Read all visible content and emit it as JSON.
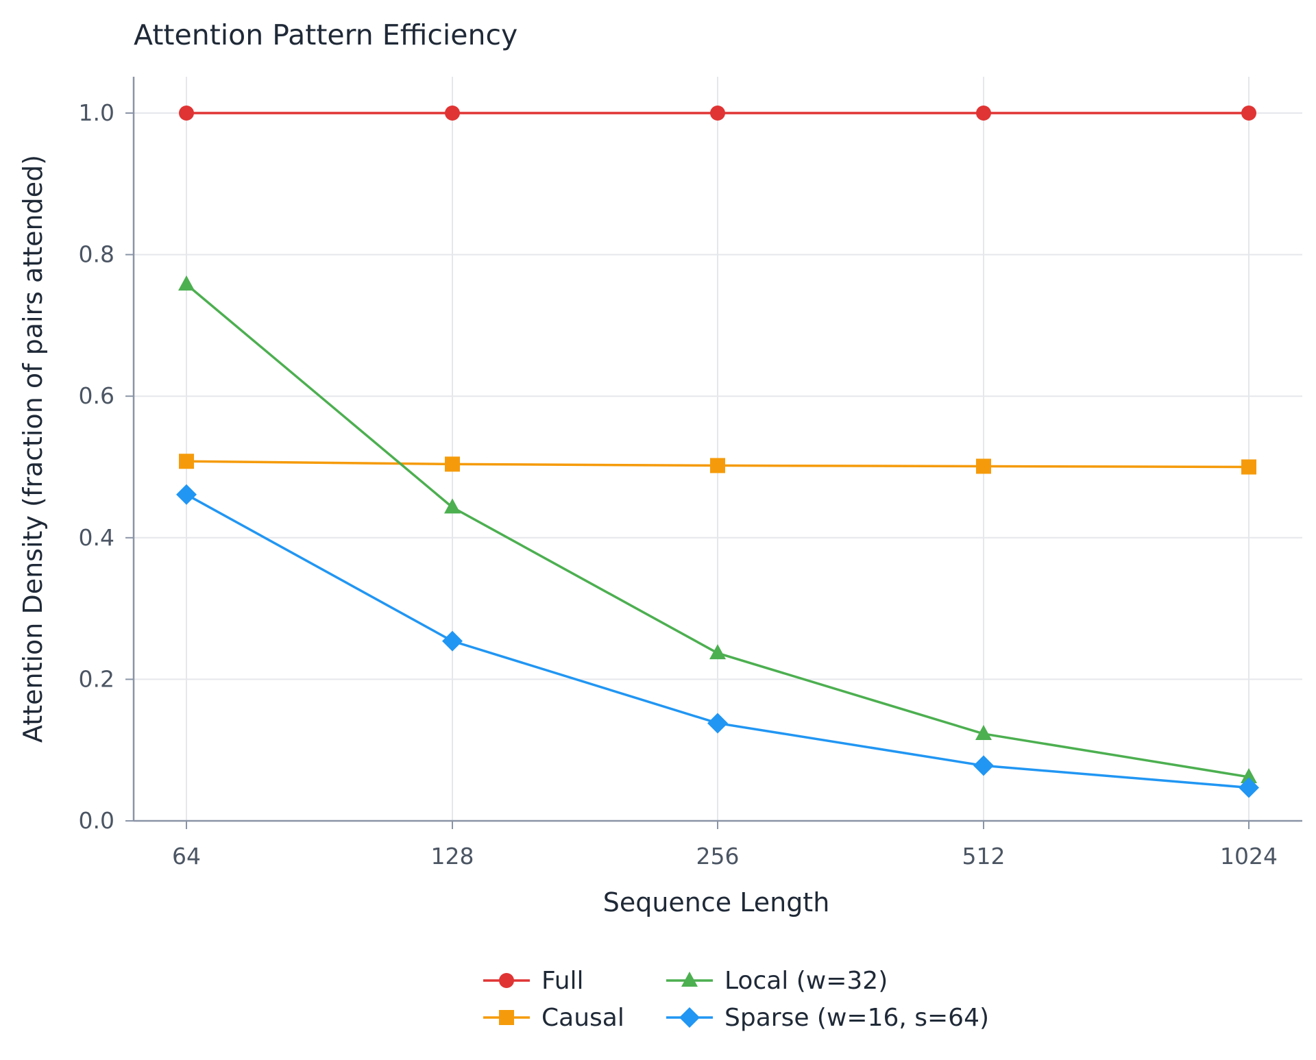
{
  "chart_data": {
    "type": "line",
    "title": "Attention Pattern Efficiency",
    "xlabel": "Sequence Length",
    "ylabel": "Attention Density (fraction of pairs attended)",
    "categories": [
      "64",
      "128",
      "256",
      "512",
      "1024"
    ],
    "ylim": [
      0,
      1.05
    ],
    "yticks": [
      "0.0",
      "0.2",
      "0.4",
      "0.6",
      "0.8",
      "1.0"
    ],
    "grid": true,
    "legend_position": "bottom-center",
    "series": [
      {
        "name": "Full",
        "color": "#e03434",
        "marker": "circle",
        "values": [
          1.0,
          1.0,
          1.0,
          1.0,
          1.0
        ]
      },
      {
        "name": "Causal",
        "color": "#f59b0b",
        "marker": "square",
        "values": [
          0.508,
          0.504,
          0.502,
          0.501,
          0.5
        ]
      },
      {
        "name": "Local (w=32)",
        "color": "#4caf50",
        "marker": "triangle",
        "values": [
          0.758,
          0.443,
          0.237,
          0.123,
          0.062
        ]
      },
      {
        "name": "Sparse (w=16, s=64)",
        "color": "#2196f3",
        "marker": "diamond",
        "values": [
          0.461,
          0.254,
          0.138,
          0.078,
          0.047
        ]
      }
    ]
  }
}
